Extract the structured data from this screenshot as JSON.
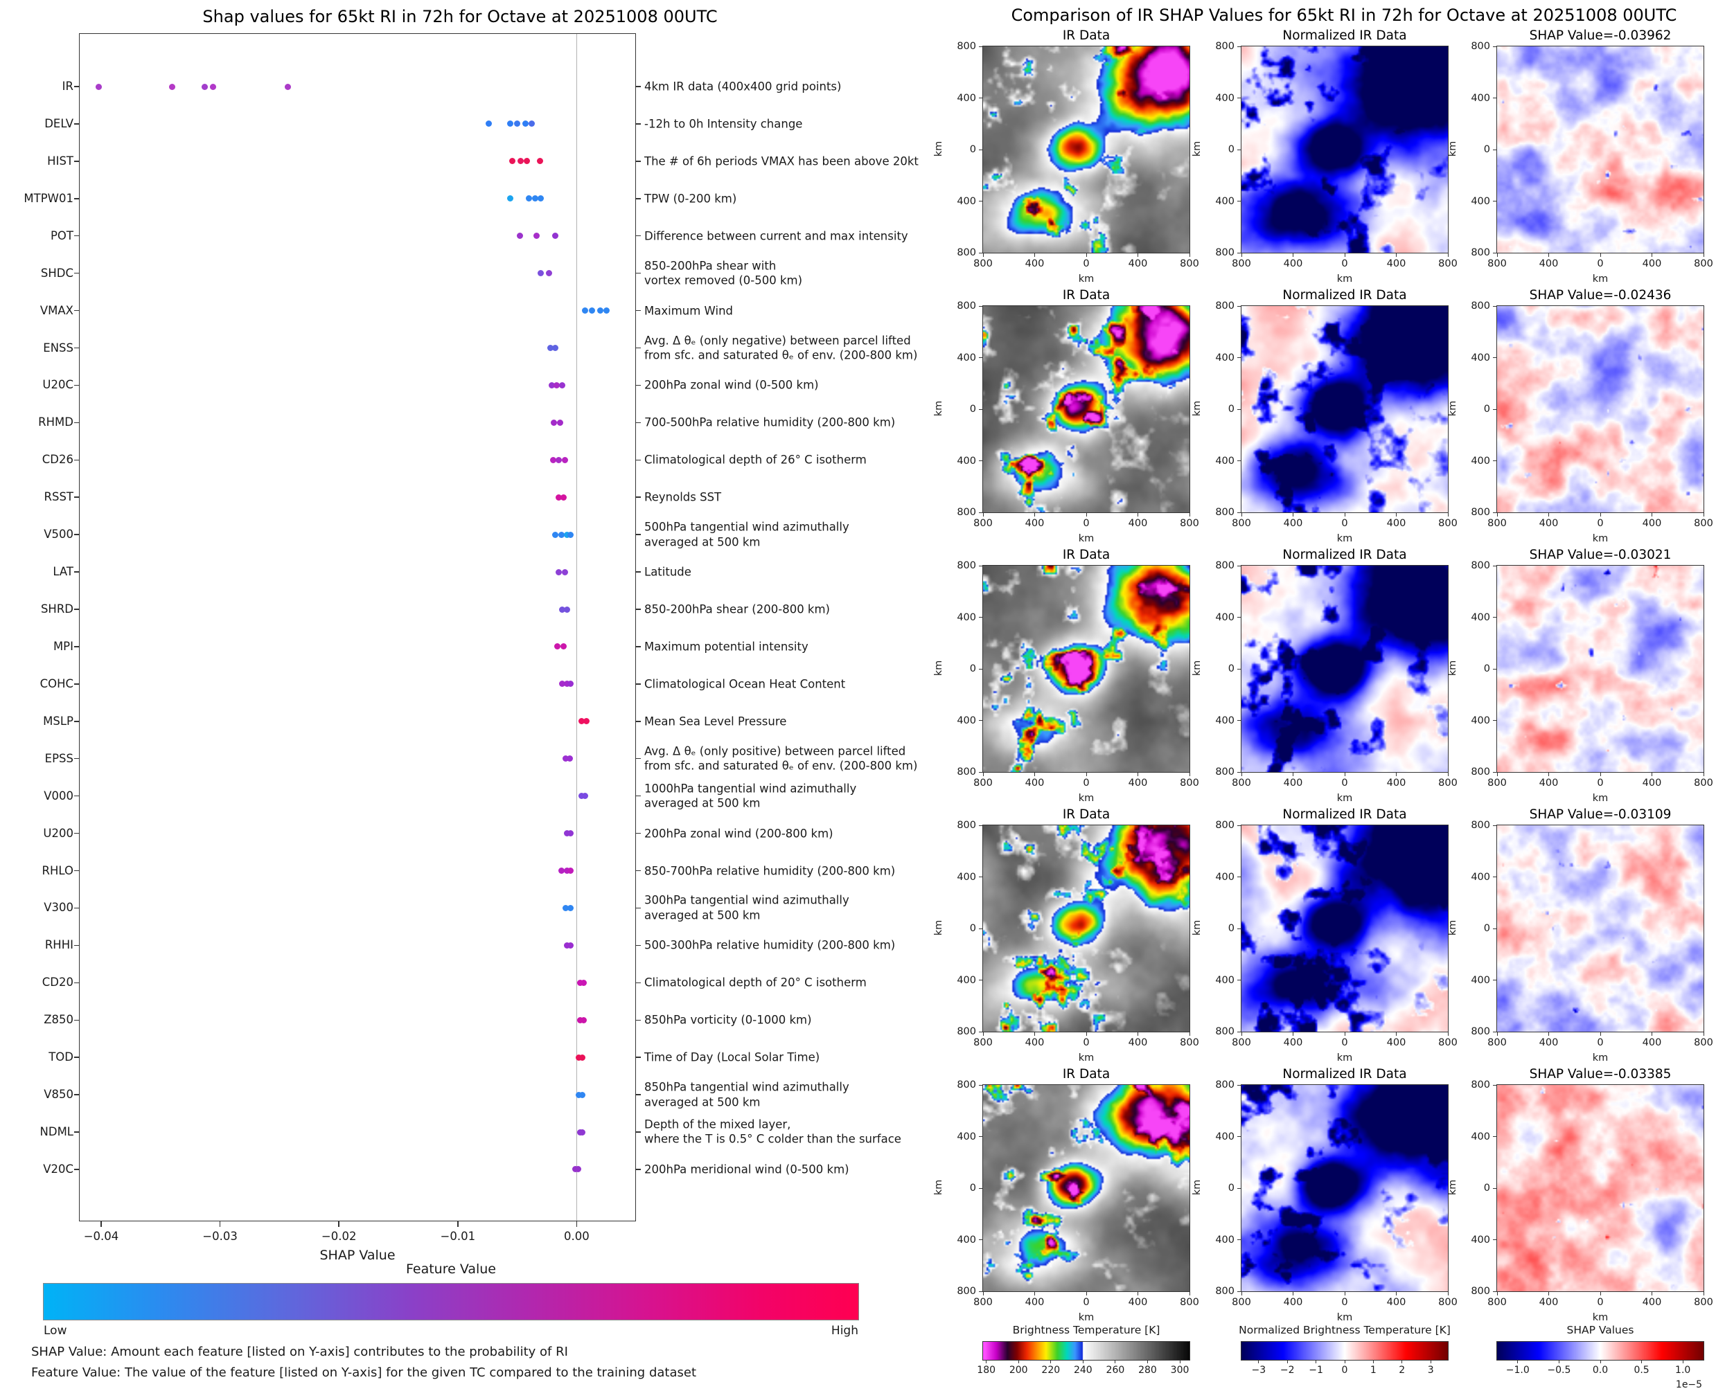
{
  "chart_data": [
    {
      "type": "scatter",
      "title": "Shap values for 65kt RI in 72h for Octave at 20251008 00UTC",
      "xlabel": "SHAP Value",
      "ylabel": "",
      "xlim": [
        -0.0419,
        0.005
      ],
      "x_ticks": [
        -0.04,
        -0.03,
        -0.02,
        -0.01,
        0.0
      ],
      "x_tick_labels": [
        "−0.04",
        "−0.03",
        "−0.02",
        "−0.01",
        "0.00"
      ],
      "zero_line": 0.0,
      "colorbar": {
        "title": "Feature Value",
        "low_label": "Low",
        "high_label": "High",
        "low_color": "#00b3f6",
        "mid_color": "#8a41c8",
        "high_color": "#ff0051"
      },
      "features": [
        {
          "name": "IR",
          "description": "4km IR data (400x400 grid points)",
          "points": [
            {
              "x": -0.0402,
              "color": "#a93cc9"
            },
            {
              "x": -0.034,
              "color": "#b43ac6"
            },
            {
              "x": -0.0313,
              "color": "#a23ecb"
            },
            {
              "x": -0.0306,
              "color": "#b138c9"
            },
            {
              "x": -0.0243,
              "color": "#ab3bc8"
            }
          ]
        },
        {
          "name": "DELV",
          "description": "-12h to 0h Intensity change",
          "points": [
            {
              "x": -0.0074,
              "color": "#2f7ef5"
            },
            {
              "x": -0.0056,
              "color": "#2f7ef5"
            },
            {
              "x": -0.005,
              "color": "#3b79f0"
            },
            {
              "x": -0.0043,
              "color": "#2f7ef5"
            },
            {
              "x": -0.0038,
              "color": "#4a6cea"
            }
          ]
        },
        {
          "name": "HIST",
          "description": "The # of 6h periods VMAX has been above 20kt",
          "points": [
            {
              "x": -0.0054,
              "color": "#ea1457"
            },
            {
              "x": -0.0047,
              "color": "#e91860"
            },
            {
              "x": -0.0042,
              "color": "#ea1457"
            },
            {
              "x": -0.0031,
              "color": "#ea1457"
            }
          ]
        },
        {
          "name": "MTPW01",
          "description": "TPW (0-200 km)",
          "points": [
            {
              "x": -0.0056,
              "color": "#1ba4ef"
            },
            {
              "x": -0.004,
              "color": "#2f86f2"
            },
            {
              "x": -0.0035,
              "color": "#2f86f2"
            },
            {
              "x": -0.003,
              "color": "#2f86f2"
            }
          ]
        },
        {
          "name": "POT",
          "description": "Difference between current and max intensity",
          "points": [
            {
              "x": -0.0048,
              "color": "#9b33cc"
            },
            {
              "x": -0.0034,
              "color": "#a72ec9"
            },
            {
              "x": -0.0018,
              "color": "#9233d1"
            }
          ]
        },
        {
          "name": "SHDC",
          "description": "850-200hPa shear with\nvortex removed (0-500 km)",
          "points": [
            {
              "x": -0.003,
              "color": "#7b50dd"
            },
            {
              "x": -0.0023,
              "color": "#8f3fd4"
            }
          ]
        },
        {
          "name": "VMAX",
          "description": "Maximum Wind",
          "points": [
            {
              "x": 0.0007,
              "color": "#2f86f2"
            },
            {
              "x": 0.0013,
              "color": "#2f86f2"
            },
            {
              "x": 0.002,
              "color": "#2f86f2"
            },
            {
              "x": 0.0025,
              "color": "#2f86f2"
            }
          ]
        },
        {
          "name": "ENSS",
          "description": "Avg. Δ θₑ (only negative) between parcel lifted\nfrom sfc. and saturated θₑ of env. (200-800 km)",
          "points": [
            {
              "x": -0.0022,
              "color": "#5f63e2"
            },
            {
              "x": -0.0018,
              "color": "#5f63e2"
            }
          ]
        },
        {
          "name": "U20C",
          "description": "200hPa zonal wind (0-500 km)",
          "points": [
            {
              "x": -0.0021,
              "color": "#9833d0"
            },
            {
              "x": -0.0017,
              "color": "#a92cc6"
            },
            {
              "x": -0.0012,
              "color": "#9833d0"
            }
          ]
        },
        {
          "name": "RHMD",
          "description": "700-500hPa relative humidity (200-800 km)",
          "points": [
            {
              "x": -0.0019,
              "color": "#a32bc9"
            },
            {
              "x": -0.0014,
              "color": "#a32bc9"
            }
          ]
        },
        {
          "name": "CD26",
          "description": "Climatological depth of 26° C isotherm",
          "points": [
            {
              "x": -0.002,
              "color": "#b823c0"
            },
            {
              "x": -0.0015,
              "color": "#a82cc8"
            },
            {
              "x": -0.001,
              "color": "#b823c0"
            }
          ]
        },
        {
          "name": "RSST",
          "description": "Reynolds SST",
          "points": [
            {
              "x": -0.0015,
              "color": "#d414a0"
            },
            {
              "x": -0.0011,
              "color": "#d414a0"
            }
          ]
        },
        {
          "name": "V500",
          "description": "500hPa tangential wind azimuthally\naveraged at 500 km",
          "points": [
            {
              "x": -0.0018,
              "color": "#2f86f2"
            },
            {
              "x": -0.0013,
              "color": "#2f86f2"
            },
            {
              "x": -0.0008,
              "color": "#1ba4ef"
            },
            {
              "x": -0.0005,
              "color": "#2f86f2"
            }
          ]
        },
        {
          "name": "LAT",
          "description": "Latitude",
          "points": [
            {
              "x": -0.0015,
              "color": "#8d40d6"
            },
            {
              "x": -0.001,
              "color": "#8d40d6"
            }
          ]
        },
        {
          "name": "SHRD",
          "description": "850-200hPa shear (200-800 km)",
          "points": [
            {
              "x": -0.0012,
              "color": "#7452de"
            },
            {
              "x": -0.0008,
              "color": "#7452de"
            }
          ]
        },
        {
          "name": "MPI",
          "description": "Maximum potential intensity",
          "points": [
            {
              "x": -0.0016,
              "color": "#cc17ab"
            },
            {
              "x": -0.0011,
              "color": "#cc17ab"
            }
          ]
        },
        {
          "name": "COHC",
          "description": "Climatological Ocean Heat Content",
          "points": [
            {
              "x": -0.0012,
              "color": "#a52bcc"
            },
            {
              "x": -0.0008,
              "color": "#a52bcc"
            },
            {
              "x": -0.0005,
              "color": "#992fd2"
            }
          ]
        },
        {
          "name": "MSLP",
          "description": "Mean Sea Level Pressure",
          "points": [
            {
              "x": 0.0004,
              "color": "#ef1060"
            },
            {
              "x": 0.0008,
              "color": "#ef1060"
            }
          ]
        },
        {
          "name": "EPSS",
          "description": "Avg. Δ θₑ (only positive) between parcel lifted\nfrom sfc. and saturated θₑ of env. (200-800 km)",
          "points": [
            {
              "x": -0.0009,
              "color": "#9c30d2"
            },
            {
              "x": -0.0006,
              "color": "#9c30d2"
            }
          ]
        },
        {
          "name": "V000",
          "description": "1000hPa tangential wind azimuthally\naveraged at 500 km",
          "points": [
            {
              "x": 0.0004,
              "color": "#7a4ae2"
            },
            {
              "x": 0.0007,
              "color": "#7a4ae2"
            }
          ]
        },
        {
          "name": "U200",
          "description": "200hPa zonal wind (200-800 km)",
          "points": [
            {
              "x": -0.0008,
              "color": "#9136d4"
            },
            {
              "x": -0.0005,
              "color": "#9136d4"
            }
          ]
        },
        {
          "name": "RHLO",
          "description": "850-700hPa relative humidity (200-800 km)",
          "points": [
            {
              "x": -0.0013,
              "color": "#b621c2"
            },
            {
              "x": -0.0008,
              "color": "#b621c2"
            },
            {
              "x": -0.0005,
              "color": "#c21bba"
            }
          ]
        },
        {
          "name": "V300",
          "description": "300hPa tangential wind azimuthally\naveraged at 500 km",
          "points": [
            {
              "x": -0.0009,
              "color": "#2f86f2"
            },
            {
              "x": -0.0005,
              "color": "#2f86f2"
            }
          ]
        },
        {
          "name": "RHHI",
          "description": "500-300hPa relative humidity (200-800 km)",
          "points": [
            {
              "x": -0.0008,
              "color": "#9a2ed0"
            },
            {
              "x": -0.0005,
              "color": "#9a2ed0"
            }
          ]
        },
        {
          "name": "CD20",
          "description": "Climatological depth of 20° C isotherm",
          "points": [
            {
              "x": 0.0003,
              "color": "#ca16b4"
            },
            {
              "x": 0.0006,
              "color": "#ca16b4"
            }
          ]
        },
        {
          "name": "Z850",
          "description": "850hPa vorticity (0-1000 km)",
          "points": [
            {
              "x": 0.0003,
              "color": "#cc14aa"
            },
            {
              "x": 0.0006,
              "color": "#cc14aa"
            }
          ]
        },
        {
          "name": "TOD",
          "description": "Time of Day (Local Solar Time)",
          "points": [
            {
              "x": 0.0002,
              "color": "#ea1258"
            },
            {
              "x": 0.0005,
              "color": "#ea1258"
            }
          ]
        },
        {
          "name": "V850",
          "description": "850hPa tangential wind azimuthally\naveraged at 500 km",
          "points": [
            {
              "x": 0.0002,
              "color": "#2f86f2"
            },
            {
              "x": 0.0005,
              "color": "#2f86f2"
            }
          ]
        },
        {
          "name": "NDML",
          "description": "Depth of the mixed layer,\nwhere the T is 0.5° C colder than the surface",
          "points": [
            {
              "x": 0.0003,
              "color": "#8f38d2"
            },
            {
              "x": 0.0005,
              "color": "#8f38d2"
            }
          ]
        },
        {
          "name": "V20C",
          "description": "200hPa meridional wind (0-500 km)",
          "points": [
            {
              "x": -0.0001,
              "color": "#9632cc"
            },
            {
              "x": 0.0001,
              "color": "#9632cc"
            }
          ]
        }
      ]
    },
    {
      "type": "heatmap",
      "title": "Comparison of IR SHAP Values for 65kt RI in 72h for Octave at 20251008 00UTC",
      "n_rows": 5,
      "n_cols": 3,
      "column_types": [
        "ir",
        "normalized_ir",
        "shap"
      ],
      "rows": [
        {
          "ir_title": "IR Data",
          "normalized_title": "Normalized IR Data",
          "shap_title": "SHAP Value=-0.03962",
          "shap_value": -0.03962
        },
        {
          "ir_title": "IR Data",
          "normalized_title": "Normalized IR Data",
          "shap_title": "SHAP Value=-0.02436",
          "shap_value": -0.02436
        },
        {
          "ir_title": "IR Data",
          "normalized_title": "Normalized IR Data",
          "shap_title": "SHAP Value=-0.03021",
          "shap_value": -0.03021
        },
        {
          "ir_title": "IR Data",
          "normalized_title": "Normalized IR Data",
          "shap_title": "SHAP Value=-0.03109",
          "shap_value": -0.03109
        },
        {
          "ir_title": "IR Data",
          "normalized_title": "Normalized IR Data",
          "shap_title": "SHAP Value=-0.03385",
          "shap_value": -0.03385
        }
      ],
      "map_axis": {
        "x_tick_labels": [
          "800",
          "400",
          "0",
          "400",
          "800"
        ],
        "y_tick_labels": [
          "800",
          "400",
          "0",
          "400",
          "800"
        ],
        "x_label": "km",
        "y_label": "km"
      },
      "colorbars": [
        {
          "label": "Brightness Temperature [K]",
          "tick_labels": [
            "180",
            "200",
            "220",
            "240",
            "260",
            "280",
            "300"
          ],
          "tick_values": [
            180,
            200,
            220,
            240,
            260,
            280,
            300
          ],
          "range": [
            178,
            306
          ],
          "style": "ir"
        },
        {
          "label": "Normalized Brightness Temperature [K]",
          "tick_labels": [
            "−3",
            "−2",
            "−1",
            "0",
            "1",
            "2",
            "3"
          ],
          "tick_values": [
            -3,
            -2,
            -1,
            0,
            1,
            2,
            3
          ],
          "range": [
            -3.6,
            3.6
          ],
          "style": "bwr"
        },
        {
          "label": "SHAP Values",
          "tick_labels": [
            "−1.0",
            "−0.5",
            "0.0",
            "0.5",
            "1.0"
          ],
          "tick_values": [
            -1,
            -0.5,
            0,
            0.5,
            1
          ],
          "range": [
            -1.25,
            1.25
          ],
          "style": "bwr",
          "offset_text": "1e−5"
        }
      ]
    }
  ],
  "footnotes": {
    "line1": "SHAP Value: Amount each feature [listed on Y-axis] contributes to the probability of RI",
    "line2": "Feature Value: The value of the feature [listed on Y-axis] for the given TC compared to the training dataset"
  }
}
